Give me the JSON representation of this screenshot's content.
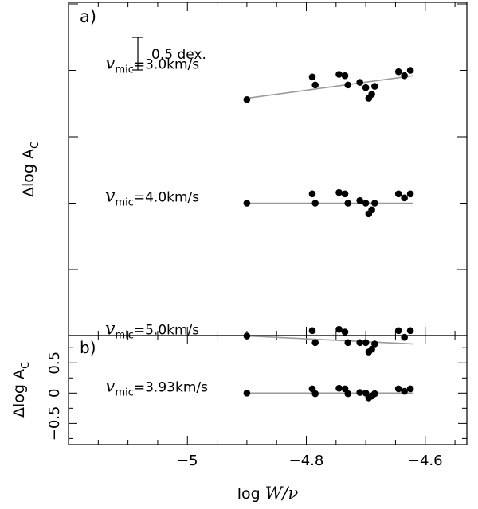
{
  "chart_data": {
    "type": "scatter",
    "xlabel": "log W/ν",
    "xlabel_parts": {
      "prefix": "log ",
      "italic": "W/ν"
    },
    "xlim": [
      -5.2,
      -4.53
    ],
    "xticks": [
      -5,
      -4.8,
      -4.6
    ],
    "xtick_labels": [
      "−5",
      "−4.8",
      "−4.6"
    ],
    "points_x": [
      -4.9,
      -4.79,
      -4.785,
      -4.745,
      -4.735,
      -4.73,
      -4.71,
      -4.7,
      -4.695,
      -4.69,
      -4.685,
      -4.645,
      -4.635,
      -4.625
    ],
    "panels": [
      {
        "id": "a",
        "label": "a)",
        "ylabel": "Δlog A",
        "ylabel_sub": "C",
        "scale_bar": {
          "length_dex": 0.5,
          "label": "0.5 dex."
        },
        "series": [
          {
            "name": "v_mic=3.0km/s",
            "prefix": "v",
            "sub": "mic",
            "suffix": "=3.0km/s",
            "offset": 2.5,
            "residuals": [
              -0.22,
              -0.05,
              -0.11,
              -0.03,
              -0.04,
              -0.11,
              -0.09,
              -0.13,
              -0.21,
              -0.18,
              -0.12,
              -0.01,
              -0.04,
              0.0
            ],
            "fit": {
              "x": [
                -4.9,
                -4.62
              ],
              "y": [
                -0.21,
                -0.04
              ]
            }
          },
          {
            "name": "v_mic=4.0km/s",
            "prefix": "v",
            "sub": "mic",
            "suffix": "=4.0km/s",
            "offset": 1.5,
            "residuals": [
              0.0,
              0.07,
              0.0,
              0.08,
              0.07,
              0.0,
              0.02,
              0.0,
              -0.08,
              -0.05,
              0.0,
              0.07,
              0.04,
              0.07
            ],
            "fit": {
              "x": [
                -4.9,
                -4.62
              ],
              "y": [
                0.0,
                0.0
              ]
            }
          },
          {
            "name": "v_mic=5.0km/s",
            "prefix": "v",
            "sub": "mic",
            "suffix": "=5.0km/s",
            "offset": 0.5,
            "residuals": [
              0.0,
              0.04,
              -0.05,
              0.05,
              0.03,
              -0.05,
              -0.05,
              -0.05,
              -0.12,
              -0.1,
              -0.06,
              0.04,
              -0.01,
              0.04
            ],
            "fit": {
              "x": [
                -4.9,
                -4.62
              ],
              "y": [
                0.0,
                -0.06
              ]
            }
          }
        ]
      },
      {
        "id": "b",
        "label": "b)",
        "ylabel": "Δlog A",
        "ylabel_sub": "C",
        "ylim": [
          -0.85,
          0.95
        ],
        "yticks": [
          -0.5,
          0,
          0.5
        ],
        "ytick_labels": [
          "−0.5",
          "0",
          "0.5"
        ],
        "series": [
          {
            "name": "v_mic=3.93km/s",
            "prefix": "v",
            "sub": "mic",
            "suffix": "=3.93km/s",
            "offset": 0,
            "residuals": [
              0.0,
              0.07,
              -0.01,
              0.08,
              0.07,
              -0.01,
              0.01,
              0.0,
              -0.08,
              -0.05,
              -0.01,
              0.07,
              0.03,
              0.07
            ],
            "fit": {
              "x": [
                -4.9,
                -4.62
              ],
              "y": [
                0.0,
                0.0
              ]
            }
          }
        ]
      }
    ]
  }
}
